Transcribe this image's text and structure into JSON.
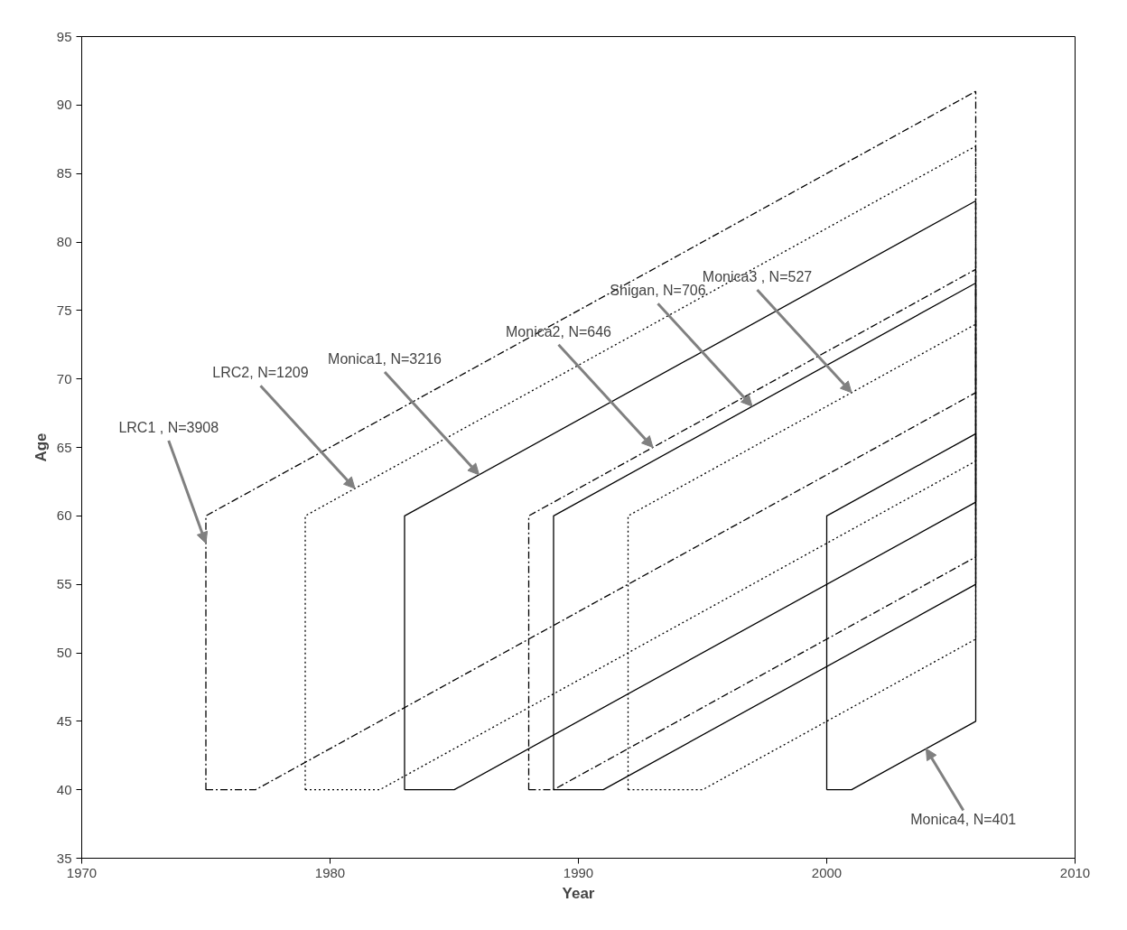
{
  "chart_data": {
    "type": "line",
    "xlabel": "Year",
    "ylabel": "Age",
    "xlim": [
      1970,
      2010
    ],
    "ylim": [
      35,
      95
    ],
    "xticks": [
      1970,
      1980,
      1990,
      2000,
      2010
    ],
    "yticks": [
      35,
      40,
      45,
      50,
      55,
      60,
      65,
      70,
      75,
      80,
      85,
      90,
      95
    ],
    "grid": false,
    "marker": "none",
    "series": [
      {
        "color": "#000000",
        "line_style": "dashdot",
        "x": [
          1975,
          1975,
          2006
        ],
        "values": [
          40,
          60,
          91
        ]
      },
      {
        "color": "#000000",
        "line_style": "dashdot",
        "x": [
          1975,
          1977,
          2006,
          2006
        ],
        "values": [
          40,
          40,
          69,
          91
        ]
      },
      {
        "color": "#000000",
        "line_style": "dotted",
        "x": [
          1979,
          1979,
          2006
        ],
        "values": [
          40,
          60,
          87
        ]
      },
      {
        "color": "#000000",
        "line_style": "dotted",
        "x": [
          1979,
          1982,
          2006,
          2006
        ],
        "values": [
          40,
          40,
          64,
          87
        ]
      },
      {
        "color": "#000000",
        "line_style": "solid",
        "x": [
          1983,
          1983,
          2006
        ],
        "values": [
          40,
          60,
          83
        ]
      },
      {
        "color": "#000000",
        "line_style": "solid",
        "x": [
          1983,
          1985,
          2006,
          2006
        ],
        "values": [
          40,
          40,
          61,
          83
        ]
      },
      {
        "color": "#000000",
        "line_style": "dashdot",
        "x": [
          1988,
          1988,
          2006
        ],
        "values": [
          40,
          60,
          78
        ]
      },
      {
        "color": "#000000",
        "line_style": "dashdot",
        "x": [
          1988,
          1989,
          2006,
          2006
        ],
        "values": [
          40,
          40,
          57,
          78
        ]
      },
      {
        "color": "#000000",
        "line_style": "solid",
        "x": [
          1989,
          1989,
          2006
        ],
        "values": [
          40,
          60,
          77
        ]
      },
      {
        "color": "#000000",
        "line_style": "solid",
        "x": [
          1989,
          1991,
          2006,
          2006
        ],
        "values": [
          40,
          40,
          55,
          77
        ]
      },
      {
        "color": "#000000",
        "line_style": "dotted",
        "x": [
          1992,
          1992,
          2006
        ],
        "values": [
          40,
          60,
          74
        ]
      },
      {
        "color": "#000000",
        "line_style": "dotted",
        "x": [
          1992,
          1995,
          2006,
          2006
        ],
        "values": [
          40,
          40,
          51,
          74
        ]
      },
      {
        "color": "#000000",
        "line_style": "solid",
        "x": [
          2000,
          2000,
          2006
        ],
        "values": [
          40,
          60,
          66
        ]
      },
      {
        "color": "#000000",
        "line_style": "solid",
        "x": [
          2000,
          2001,
          2006,
          2006
        ],
        "values": [
          40,
          40,
          45,
          66
        ]
      }
    ],
    "annotations": [
      {
        "text": "LRC1 , N=3908",
        "x": 1975,
        "y": 58
      },
      {
        "text": "LRC2, N=1209",
        "x": 1981,
        "y": 62
      },
      {
        "text": "Monica1, N=3216",
        "x": 1986,
        "y": 63
      },
      {
        "text": "Monica2, N=646",
        "x": 1993,
        "y": 65
      },
      {
        "text": "Shigan, N=706",
        "x": 1997,
        "y": 68
      },
      {
        "text": "Monica3 , N=527",
        "x": 2001,
        "y": 69
      },
      {
        "text": "Monica4, N=401",
        "x": 2004,
        "y": 43
      }
    ]
  }
}
